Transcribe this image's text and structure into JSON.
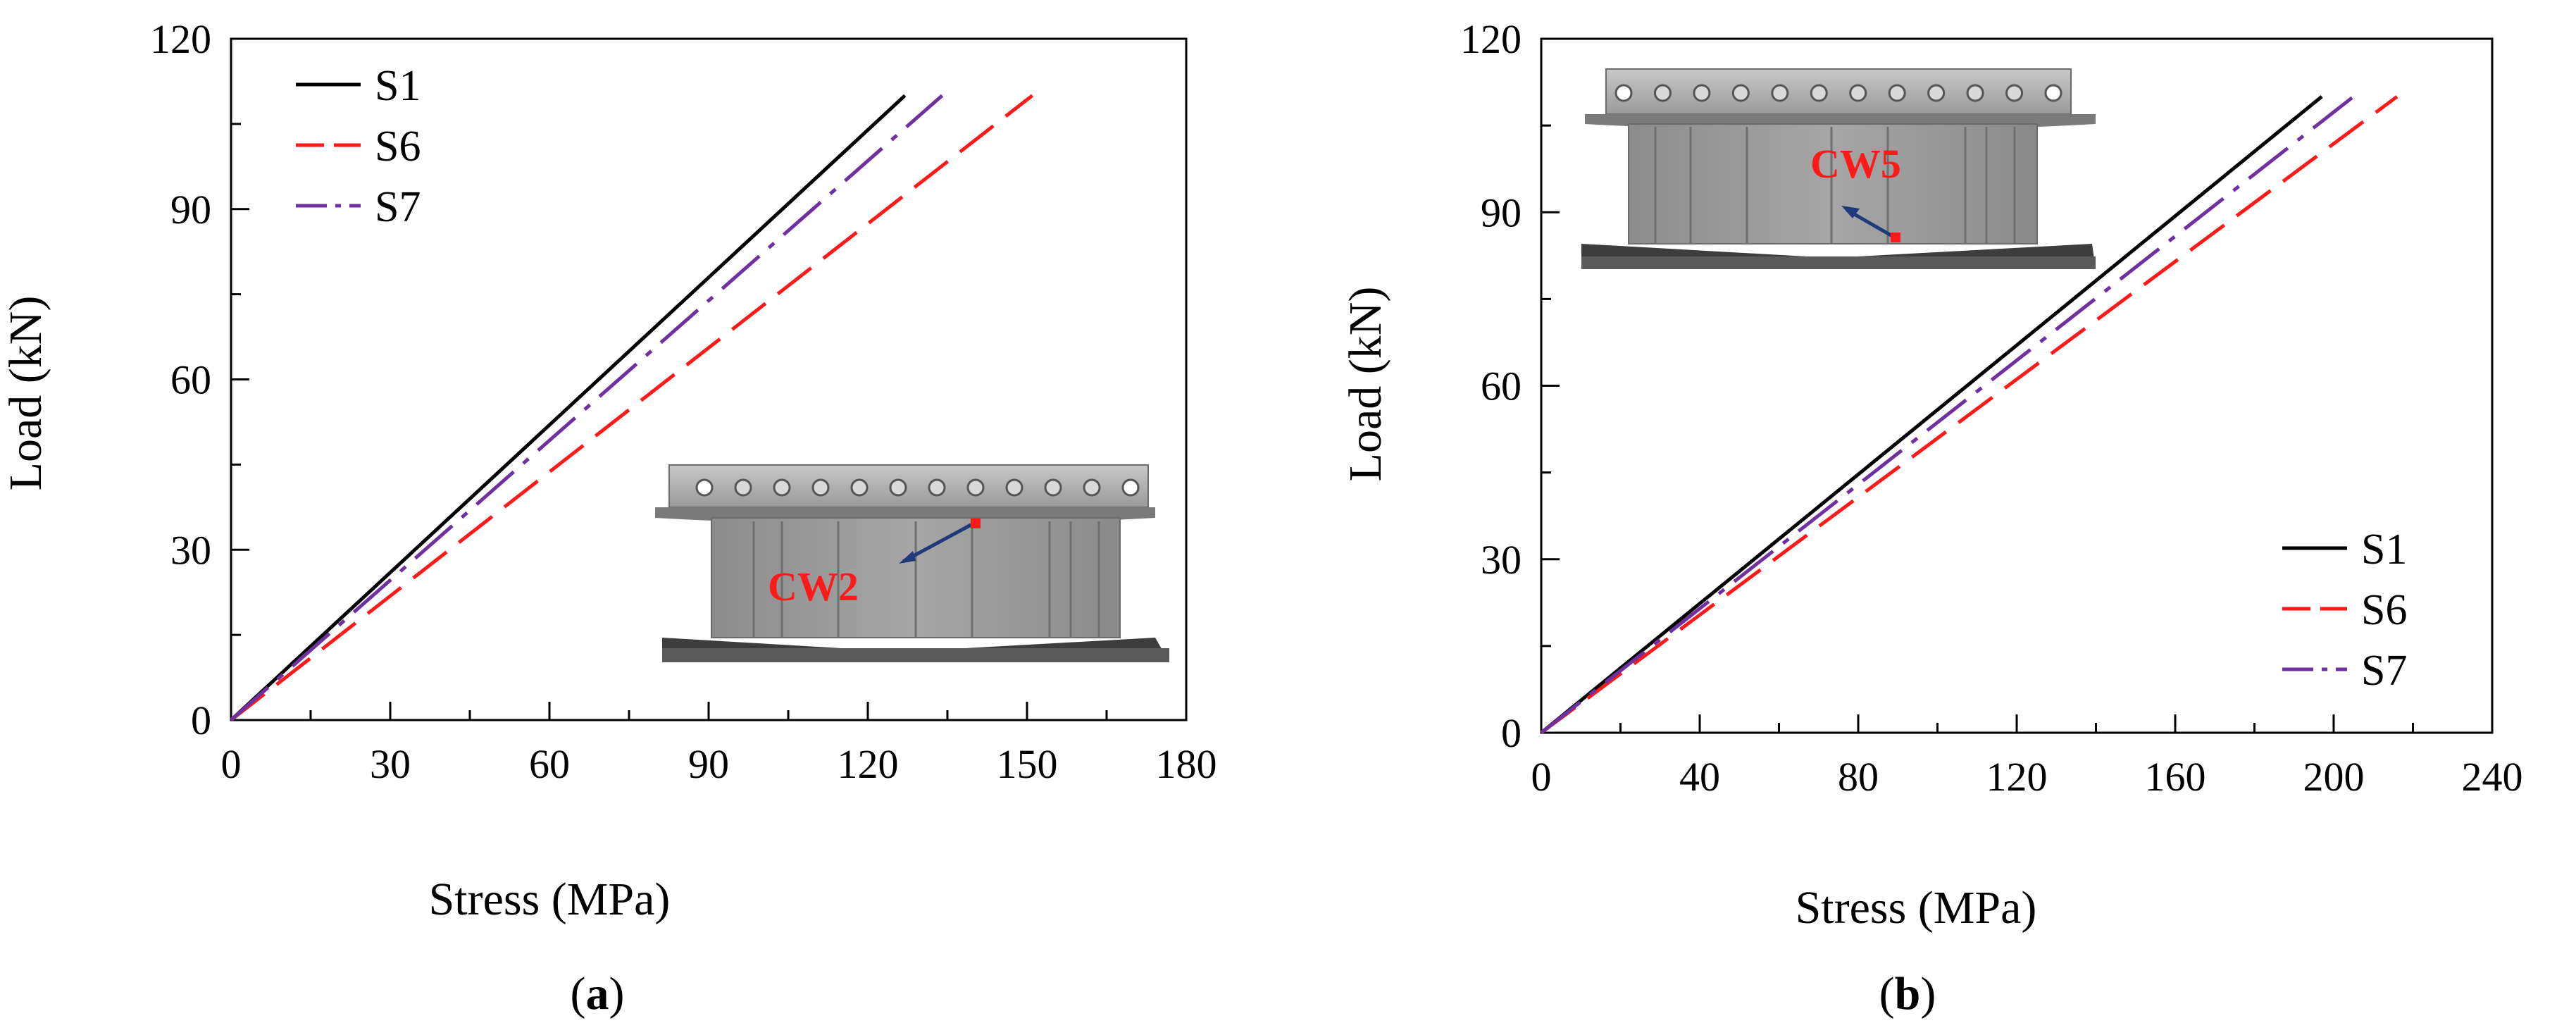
{
  "chart_data": [
    {
      "type": "line",
      "panel": "(a)",
      "caption_open": "(",
      "caption_letter": "a",
      "caption_close": ")",
      "xlabel": "Stress (MPa)",
      "ylabel": "Load (kN)",
      "xlim": [
        0,
        180
      ],
      "ylim": [
        0,
        120
      ],
      "xticks": [
        0,
        30,
        60,
        90,
        120,
        150,
        180
      ],
      "yticks": [
        0,
        30,
        60,
        90,
        120
      ],
      "x_minor_step": 15,
      "y_minor_step": 15,
      "legend_position": "top-left",
      "inset_label": "CW2",
      "inset_position": "bottom-right",
      "series": [
        {
          "name": "S1",
          "color": "#000000",
          "dash": "solid",
          "points": [
            [
              0,
              0
            ],
            [
              127,
              110
            ]
          ]
        },
        {
          "name": "S6",
          "color": "#ff1a1a",
          "dash": "dash",
          "points": [
            [
              0,
              0
            ],
            [
              151,
              110
            ]
          ]
        },
        {
          "name": "S7",
          "color": "#7030a0",
          "dash": "dashdot",
          "points": [
            [
              0,
              0
            ],
            [
              134,
              110
            ]
          ]
        }
      ]
    },
    {
      "type": "line",
      "panel": "(b)",
      "caption_open": "(",
      "caption_letter": "b",
      "caption_close": ")",
      "xlabel": "Stress (MPa)",
      "ylabel": "Load (kN)",
      "xlim": [
        0,
        240
      ],
      "ylim": [
        0,
        120
      ],
      "xticks": [
        0,
        40,
        80,
        120,
        160,
        200,
        240
      ],
      "yticks": [
        0,
        30,
        60,
        90,
        120
      ],
      "x_minor_step": 20,
      "y_minor_step": 15,
      "legend_position": "bottom-right",
      "inset_label": "CW5",
      "inset_position": "top-left",
      "series": [
        {
          "name": "S1",
          "color": "#000000",
          "dash": "solid",
          "points": [
            [
              0,
              0
            ],
            [
              197,
              110
            ]
          ]
        },
        {
          "name": "S6",
          "color": "#ff1a1a",
          "dash": "dash",
          "points": [
            [
              0,
              0
            ],
            [
              216,
              110
            ]
          ]
        },
        {
          "name": "S7",
          "color": "#7030a0",
          "dash": "dashdot",
          "points": [
            [
              0,
              0
            ],
            [
              205,
              110
            ]
          ]
        }
      ]
    }
  ]
}
